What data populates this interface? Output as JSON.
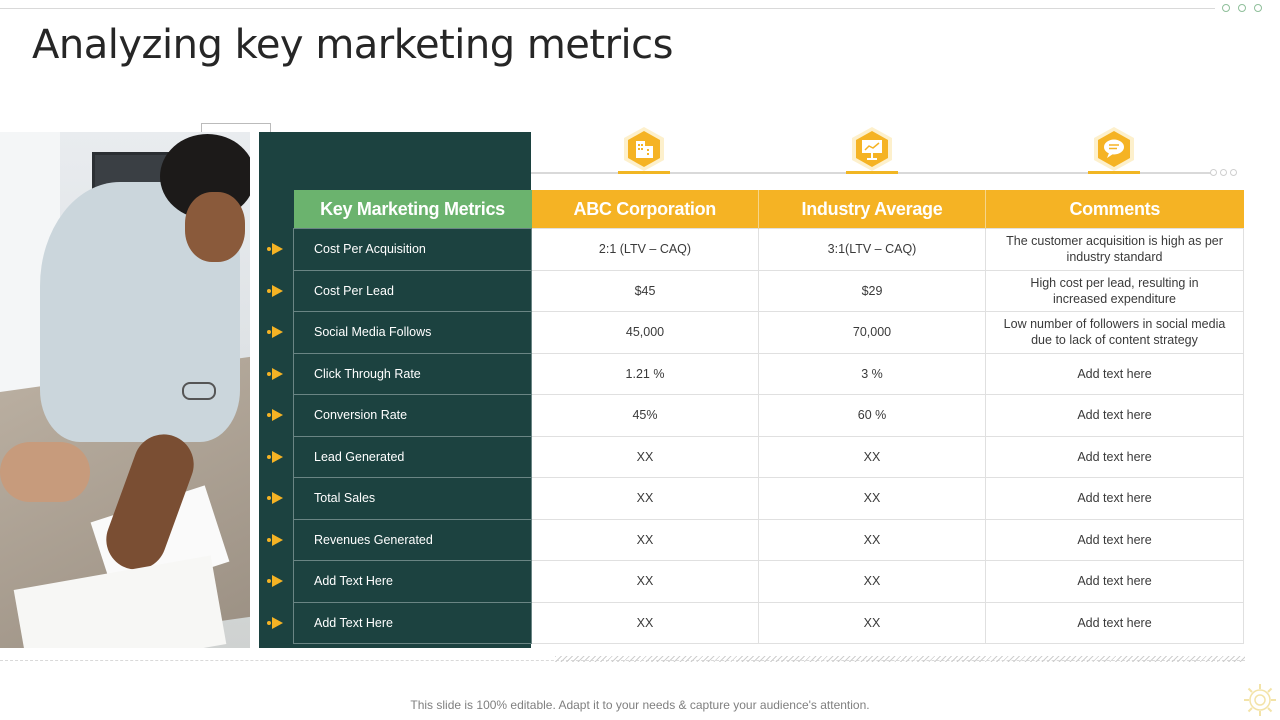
{
  "slide": {
    "title": "Analyzing key marketing metrics",
    "footer": "This slide is 100% editable. Adapt it to your needs & capture your audience's attention."
  },
  "icons": [
    "building-icon",
    "presentation-board-icon",
    "chat-bubble-icon"
  ],
  "colors": {
    "dark_green": "#1c4240",
    "light_green": "#6bb36e",
    "accent_yellow": "#f5b324"
  },
  "table": {
    "headers": [
      "Key Marketing Metrics",
      "ABC Corporation",
      "Industry Average",
      "Comments"
    ],
    "rows": [
      {
        "metric": "Cost Per Acquisition",
        "abc": "2:1 (LTV – CAQ)",
        "industry": "3:1(LTV – CAQ)",
        "comment": "The customer acquisition is high as per industry standard"
      },
      {
        "metric": "Cost Per Lead",
        "abc": "$45",
        "industry": "$29",
        "comment": "High cost per lead, resulting in increased expenditure"
      },
      {
        "metric": "Social Media Follows",
        "abc": "45,000",
        "industry": "70,000",
        "comment": "Low number of followers in social media due to lack of content strategy"
      },
      {
        "metric": "Click Through  Rate",
        "abc": "1.21 %",
        "industry": "3 %",
        "comment": "Add text here"
      },
      {
        "metric": "Conversion  Rate",
        "abc": "45%",
        "industry": "60 %",
        "comment": "Add text here"
      },
      {
        "metric": "Lead Generated",
        "abc": "XX",
        "industry": "XX",
        "comment": "Add text here"
      },
      {
        "metric": "Total Sales",
        "abc": "XX",
        "industry": "XX",
        "comment": "Add text here"
      },
      {
        "metric": "Revenues  Generated",
        "abc": "XX",
        "industry": "XX",
        "comment": "Add text here"
      },
      {
        "metric": "Add Text Here",
        "abc": "XX",
        "industry": "XX",
        "comment": "Add text here"
      },
      {
        "metric": "Add Text Here",
        "abc": "XX",
        "industry": "XX",
        "comment": "Add text here"
      }
    ]
  }
}
